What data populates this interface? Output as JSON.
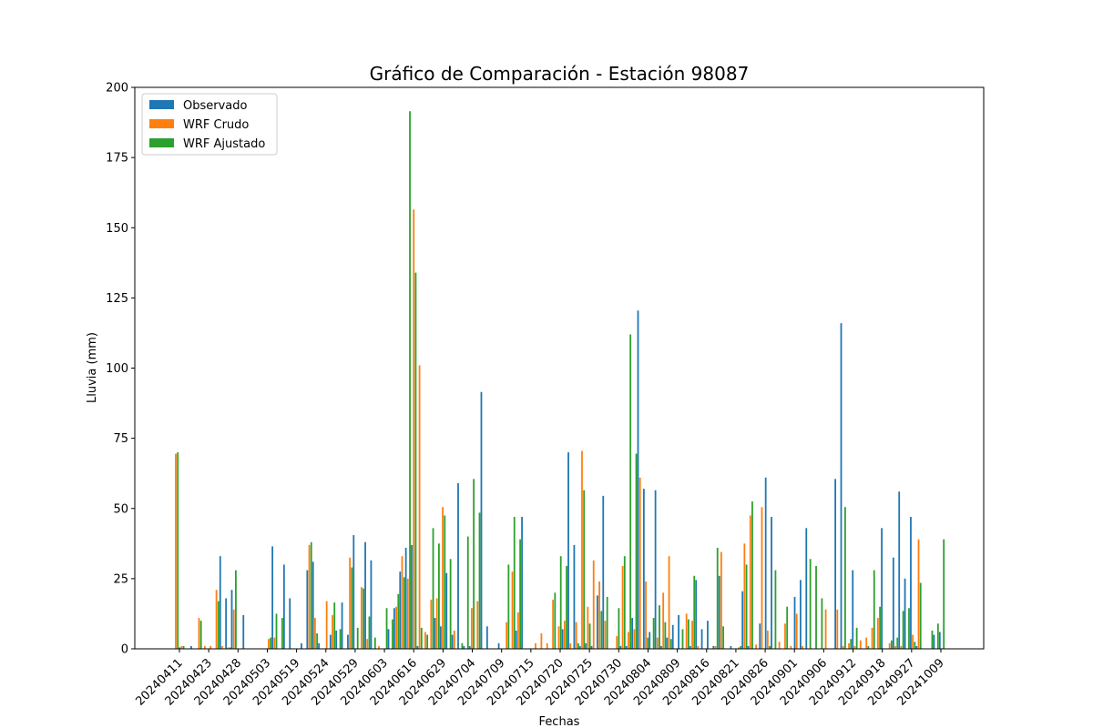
{
  "chart_data": {
    "type": "bar",
    "title": "Gráfico de Comparación - Estación 98087",
    "xlabel": "Fechas",
    "ylabel": "Lluvia (mm)",
    "ylim": [
      0,
      200
    ],
    "yticks": [
      0,
      25,
      50,
      75,
      100,
      125,
      150,
      175,
      200
    ],
    "xticks": [
      "20240411",
      "20240423",
      "20240428",
      "20240503",
      "20240519",
      "20240524",
      "20240529",
      "20240603",
      "20240616",
      "20240629",
      "20240704",
      "20240709",
      "20240715",
      "20240720",
      "20240725",
      "20240730",
      "20240804",
      "20240809",
      "20240816",
      "20240821",
      "20240826",
      "20240901",
      "20240906",
      "20240912",
      "20240918",
      "20240927",
      "20241009"
    ],
    "legend_position": "top-left",
    "series": [
      {
        "name": "Observado",
        "color": "#1f77b4",
        "values": [
          0,
          0.5,
          0,
          1,
          0,
          0,
          0,
          0,
          33,
          18,
          21,
          0,
          12,
          0,
          0,
          0,
          0,
          36.5,
          0,
          30,
          18,
          0,
          2,
          28,
          31,
          2,
          0,
          5,
          6.5,
          16.5,
          5,
          40.5,
          0,
          38,
          31.5,
          0,
          0,
          7,
          14.5,
          27.5,
          36,
          37,
          1,
          0,
          0,
          11,
          8,
          27,
          5,
          59,
          1,
          1,
          0,
          91.5,
          8,
          0,
          2,
          0,
          0,
          6.5,
          47,
          0,
          0,
          0,
          0,
          0,
          0,
          7,
          70,
          37,
          1,
          2,
          1,
          19,
          54.5,
          0,
          0,
          1,
          1,
          11,
          120.5,
          57,
          6,
          56.5,
          1,
          4,
          8.5,
          12,
          0,
          1,
          24.5,
          7,
          10,
          1,
          26,
          0,
          1,
          0,
          20.5,
          1,
          0,
          9,
          61,
          47,
          0,
          0,
          0,
          18.5,
          24.5,
          43,
          0,
          0,
          0,
          0,
          60.5,
          116,
          0,
          28,
          0,
          0,
          0,
          0,
          43,
          0,
          32.5,
          56,
          25,
          47,
          1,
          0,
          0,
          5,
          6
        ]
      },
      {
        "name": "WRF Crudo",
        "color": "#ff7f0e",
        "values": [
          69.5,
          1,
          0,
          0,
          11,
          1,
          1,
          21,
          1,
          0.5,
          14,
          0,
          0,
          0,
          0,
          0,
          3.5,
          4,
          0,
          0,
          0,
          0,
          0,
          37,
          11,
          0,
          17,
          12,
          0,
          0,
          32.5,
          0,
          22,
          3.5,
          0,
          1,
          0,
          0,
          15,
          33,
          25,
          156.5,
          101,
          6,
          17.5,
          18,
          50.5,
          0,
          6.5,
          0,
          0,
          14.5,
          17,
          0,
          0,
          0,
          0,
          9.5,
          27.5,
          13,
          0,
          0,
          2,
          5.5,
          2,
          17.5,
          8,
          10,
          2,
          9.5,
          70.5,
          15,
          31.5,
          24,
          10,
          0,
          4.5,
          29.5,
          6,
          7,
          61,
          24,
          0,
          4,
          20,
          33,
          0,
          0,
          12.5,
          10,
          1,
          0,
          0,
          1,
          34.5,
          0,
          0,
          0.5,
          37.5,
          47.5,
          1.5,
          50.5,
          6.5,
          0,
          2.5,
          9,
          1,
          12.5,
          1,
          0,
          0,
          0,
          14,
          0,
          14,
          1,
          2,
          1,
          3,
          4,
          7.5,
          11,
          0,
          2,
          1,
          1,
          0,
          5,
          39
        ]
      },
      {
        "name": "WRF Ajustado",
        "color": "#2ca02c",
        "values": [
          70,
          1,
          0,
          0,
          10,
          0,
          0,
          17,
          0,
          0.5,
          28,
          0,
          0,
          0,
          0,
          0,
          4,
          12.5,
          11,
          0,
          0,
          0,
          0,
          38,
          5.5,
          0,
          0,
          16.5,
          7,
          0,
          29,
          7.5,
          21.5,
          11.5,
          4,
          0,
          14.5,
          10.5,
          19.5,
          25.5,
          191.5,
          134,
          7.5,
          5,
          43,
          37.5,
          47.5,
          32,
          0,
          2,
          40,
          60.5,
          48.5,
          0,
          0,
          0,
          0,
          30,
          47,
          39,
          0,
          0,
          0,
          0,
          0,
          20,
          33,
          29.5,
          0,
          2,
          56.5,
          9,
          0,
          13.5,
          18.5,
          0,
          14.5,
          33,
          112,
          69.5,
          0,
          4,
          11,
          15.5,
          9.5,
          3.5,
          0,
          7,
          10.5,
          26,
          0,
          0,
          0,
          36,
          8,
          0,
          0,
          1,
          30,
          52.5,
          0,
          0,
          1,
          28,
          0,
          15,
          0,
          0,
          0,
          32,
          29.5,
          18,
          0,
          0,
          0,
          50.5,
          3.5,
          7.5,
          0,
          1,
          28,
          15,
          0,
          3,
          4,
          13.5,
          14.5,
          2.5,
          23.5,
          0,
          6.5,
          9,
          39
        ]
      }
    ]
  }
}
